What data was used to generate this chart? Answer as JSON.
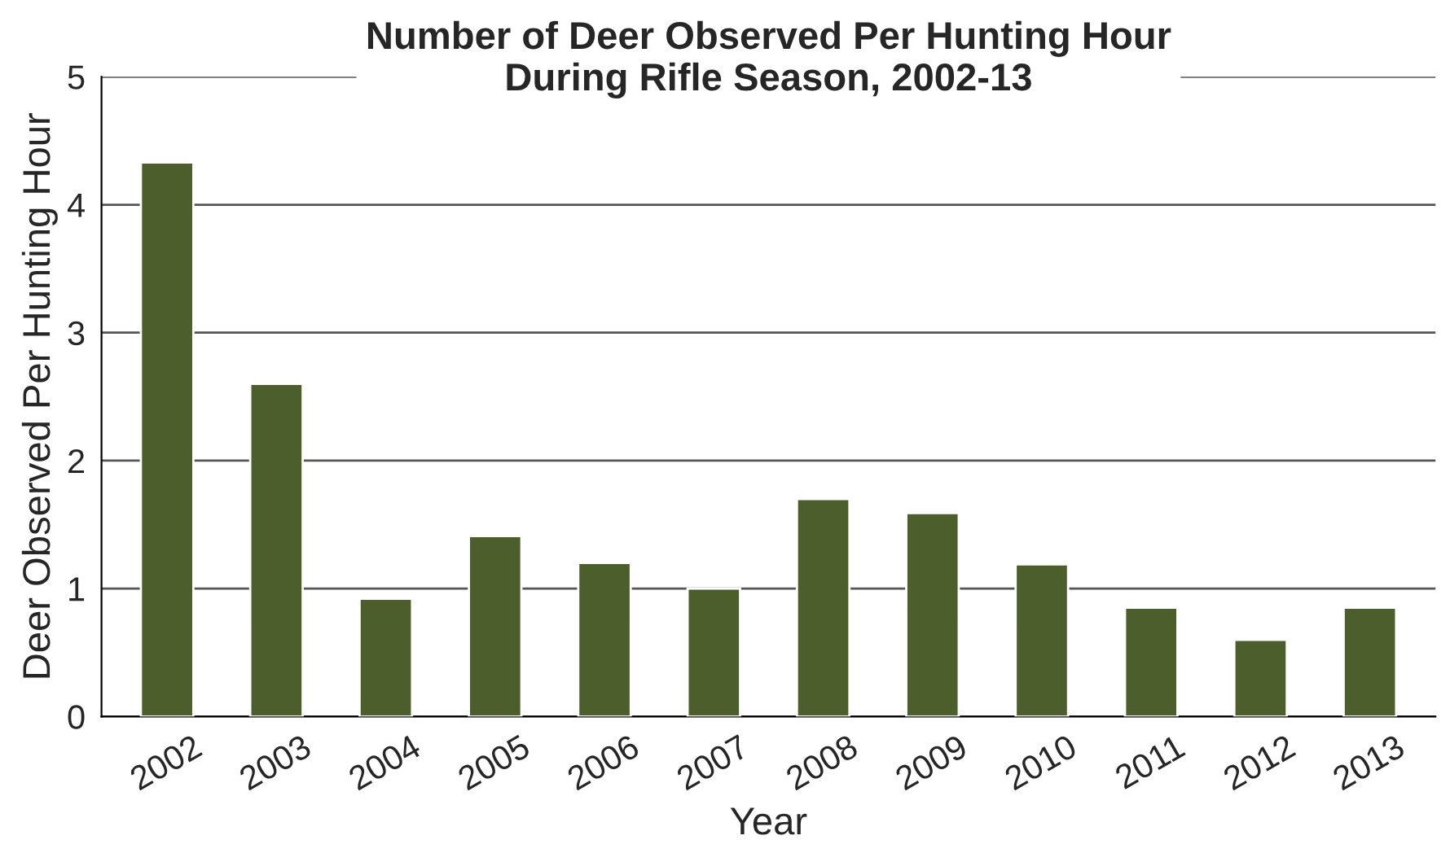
{
  "chart_data": {
    "type": "bar",
    "title": "Number of Deer Observed Per Hunting Hour\nDuring Rifle Season, 2002-13",
    "xlabel": "Year",
    "ylabel": "Deer Observed Per Hunting Hour",
    "categories": [
      "2002",
      "2003",
      "2004",
      "2005",
      "2006",
      "2007",
      "2008",
      "2009",
      "2010",
      "2011",
      "2012",
      "2013"
    ],
    "values": [
      4.33,
      2.6,
      0.92,
      1.41,
      1.2,
      1.0,
      1.7,
      1.59,
      1.19,
      0.85,
      0.6,
      0.85
    ],
    "color": "#4b5e2c",
    "ylim": [
      0,
      5
    ],
    "yticks": [
      0,
      1,
      2,
      3,
      4,
      5
    ],
    "grid": "y"
  }
}
